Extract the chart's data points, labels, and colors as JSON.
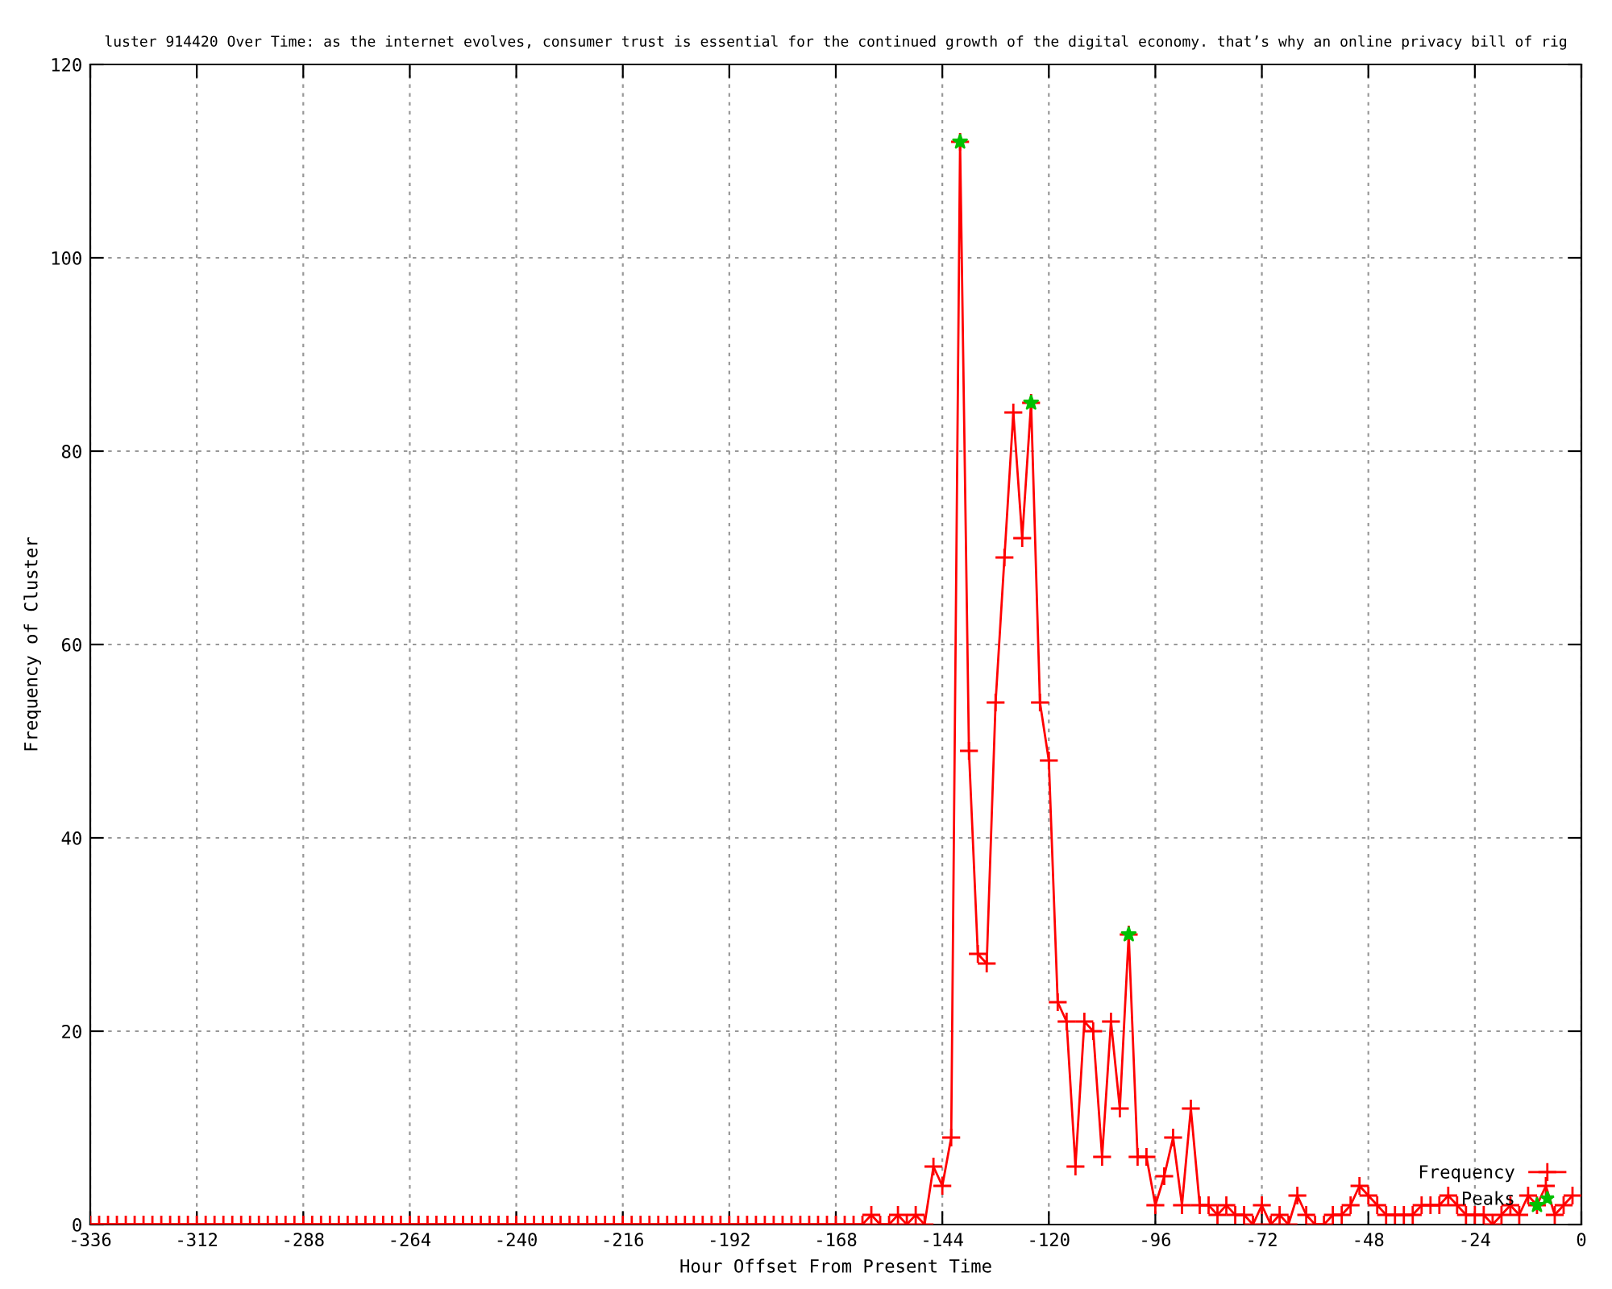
{
  "chart_data": {
    "type": "line",
    "title": "luster 914420 Over Time: as the internet evolves, consumer trust is essential for the continued growth of the digital economy. that’s why an online privacy bill of rig",
    "xlabel": "Hour Offset From Present Time",
    "ylabel": "Frequency of Cluster",
    "xlim": [
      -336,
      0
    ],
    "xticks": [
      -336,
      -312,
      -288,
      -264,
      -240,
      -216,
      -192,
      -168,
      -144,
      -120,
      -96,
      -72,
      -48,
      -24,
      0
    ],
    "ylim": [
      0,
      120
    ],
    "yticks": [
      0,
      20,
      40,
      60,
      80,
      100,
      120
    ],
    "grid": true,
    "legend": "bottom right",
    "series": [
      {
        "name": "Frequency",
        "color": "#ff0000",
        "marker": "cross",
        "line_style": "solid",
        "x": [
          -336,
          -334,
          -332,
          -330,
          -328,
          -326,
          -324,
          -322,
          -320,
          -318,
          -316,
          -314,
          -312,
          -310,
          -308,
          -306,
          -304,
          -302,
          -300,
          -298,
          -296,
          -294,
          -292,
          -290,
          -288,
          -286,
          -284,
          -282,
          -280,
          -278,
          -276,
          -274,
          -272,
          -270,
          -268,
          -266,
          -264,
          -262,
          -260,
          -258,
          -256,
          -254,
          -252,
          -250,
          -248,
          -246,
          -244,
          -242,
          -240,
          -238,
          -236,
          -234,
          -232,
          -230,
          -228,
          -226,
          -224,
          -222,
          -220,
          -218,
          -216,
          -214,
          -212,
          -210,
          -208,
          -206,
          -204,
          -202,
          -200,
          -198,
          -196,
          -194,
          -192,
          -190,
          -188,
          -186,
          -184,
          -182,
          -180,
          -178,
          -176,
          -174,
          -172,
          -170,
          -168,
          -166,
          -164,
          -162,
          -160,
          -158,
          -156,
          -154,
          -152,
          -150,
          -148,
          -146,
          -144,
          -142,
          -140,
          -138,
          -136,
          -134,
          -132,
          -130,
          -128,
          -126,
          -124,
          -122,
          -120,
          -118,
          -116,
          -114,
          -112,
          -110,
          -108,
          -106,
          -104,
          -102,
          -100,
          -98,
          -96,
          -94,
          -92,
          -90,
          -88,
          -86,
          -84,
          -82,
          -80,
          -78,
          -76,
          -74,
          -72,
          -70,
          -68,
          -66,
          -64,
          -62,
          -60,
          -58,
          -56,
          -54,
          -52,
          -50,
          -48,
          -46,
          -44,
          -42,
          -40,
          -38,
          -36,
          -34,
          -32,
          -30,
          -28,
          -26,
          -24,
          -22,
          -20,
          -18,
          -16,
          -14,
          -12,
          -10,
          -8,
          -6,
          -4,
          -2
        ],
        "values": [
          0,
          0,
          0,
          0,
          0,
          0,
          0,
          0,
          0,
          0,
          0,
          0,
          0,
          0,
          0,
          0,
          0,
          0,
          0,
          0,
          0,
          0,
          0,
          0,
          0,
          0,
          0,
          0,
          0,
          0,
          0,
          0,
          0,
          0,
          0,
          0,
          0,
          0,
          0,
          0,
          0,
          0,
          0,
          0,
          0,
          0,
          0,
          0,
          0,
          0,
          0,
          0,
          0,
          0,
          0,
          0,
          0,
          0,
          0,
          0,
          0,
          0,
          0,
          0,
          0,
          0,
          0,
          0,
          0,
          0,
          0,
          0,
          0,
          0,
          0,
          0,
          0,
          0,
          0,
          0,
          0,
          0,
          0,
          0,
          0,
          0,
          0,
          0,
          1,
          0,
          0,
          1,
          0,
          1,
          0,
          6,
          4,
          9,
          112,
          49,
          28,
          27,
          54,
          69,
          84,
          71,
          85,
          54,
          48,
          23,
          21,
          6,
          21,
          20,
          7,
          21,
          12,
          30,
          7,
          7,
          2,
          5,
          9,
          2,
          12,
          2,
          2,
          1,
          2,
          1,
          1,
          0,
          2,
          0,
          1,
          0,
          3,
          1,
          0,
          0,
          1,
          1,
          2,
          4,
          3,
          2,
          1,
          1,
          1,
          1,
          2,
          2,
          2,
          3,
          2,
          1,
          1,
          1,
          0,
          1,
          2,
          1,
          3,
          2,
          4,
          1,
          2,
          3
        ]
      },
      {
        "name": "Peaks",
        "type": "scatter",
        "color": "#00c000",
        "marker": "star",
        "x": [
          -140,
          -124,
          -102,
          -10
        ],
        "values": [
          112,
          85,
          30,
          2
        ]
      }
    ]
  }
}
